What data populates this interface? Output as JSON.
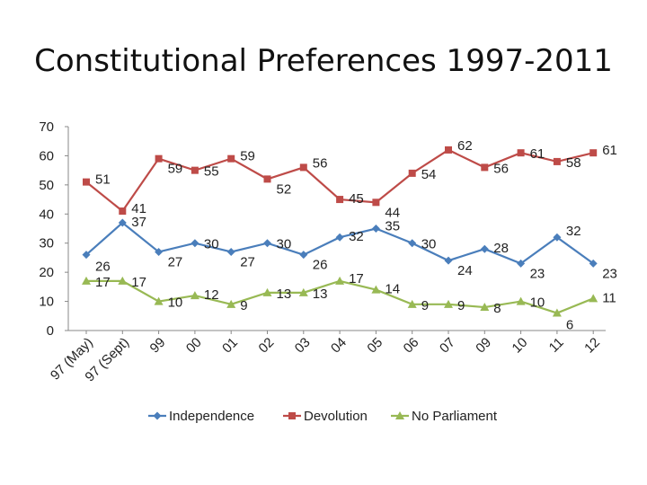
{
  "chart_data": {
    "type": "line",
    "title": "Constitutional Preferences 1997-2011",
    "xlabel": "",
    "ylabel": "",
    "ylim": [
      0,
      70
    ],
    "yticks": [
      0,
      10,
      20,
      30,
      40,
      50,
      60,
      70
    ],
    "categories": [
      "97 (May)",
      "97 (Sept)",
      "99",
      "00",
      "01",
      "02",
      "03",
      "04",
      "05",
      "06",
      "07",
      "09",
      "10",
      "11",
      "12"
    ],
    "legend_position": "bottom",
    "series": [
      {
        "name": "Independence",
        "color": "#4a7ebb",
        "marker": "diamond",
        "values": [
          26,
          37,
          27,
          30,
          27,
          30,
          26,
          32,
          35,
          30,
          24,
          28,
          23,
          32,
          23
        ]
      },
      {
        "name": "Devolution",
        "color": "#be4b48",
        "marker": "square",
        "values": [
          51,
          41,
          59,
          55,
          59,
          52,
          56,
          45,
          44,
          54,
          62,
          56,
          61,
          58,
          61
        ]
      },
      {
        "name": "No Parliament",
        "color": "#98b954",
        "marker": "triangle",
        "values": [
          17,
          17,
          10,
          12,
          9,
          13,
          13,
          17,
          14,
          9,
          9,
          8,
          10,
          6,
          11
        ]
      }
    ]
  }
}
